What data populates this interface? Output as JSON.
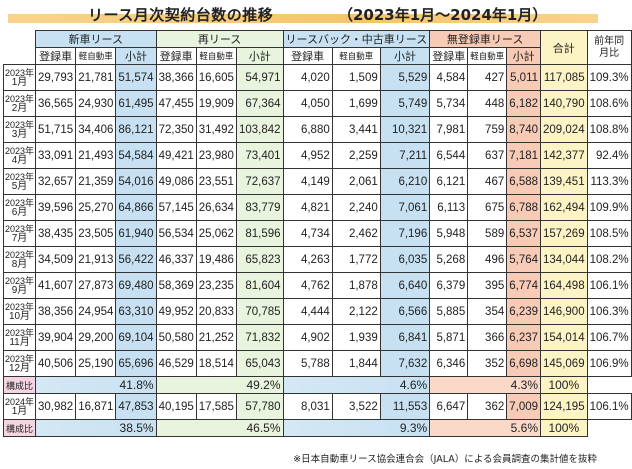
{
  "title": "リース月次契約台数の推移",
  "period": "（2023年1月〜2024年1月）",
  "headers": {
    "groups": [
      "新車リース",
      "再リース",
      "リースバック・中古車リース",
      "無登録車リース"
    ],
    "sub": [
      "登録車",
      "軽自動車",
      "小計"
    ],
    "sub_last": [
      "登録車",
      "軽自動車",
      "小計"
    ],
    "total": "合計",
    "yoy": "前年同月比"
  },
  "rows": [
    {
      "y": "2023年",
      "m": "1月",
      "v": [
        "29,793",
        "21,781",
        "51,574",
        "38,366",
        "16,605",
        "54,971",
        "4,020",
        "1,509",
        "5,529",
        "4,584",
        "427",
        "5,011",
        "117,085",
        "109.3%"
      ]
    },
    {
      "y": "2023年",
      "m": "2月",
      "v": [
        "36,565",
        "24,930",
        "61,495",
        "47,455",
        "19,909",
        "67,364",
        "4,050",
        "1,699",
        "5,749",
        "5,734",
        "448",
        "6,182",
        "140,790",
        "108.6%"
      ]
    },
    {
      "y": "2023年",
      "m": "3月",
      "v": [
        "51,715",
        "34,406",
        "86,121",
        "72,350",
        "31,492",
        "103,842",
        "6,880",
        "3,441",
        "10,321",
        "7,981",
        "759",
        "8,740",
        "209,024",
        "108.8%"
      ]
    },
    {
      "y": "2023年",
      "m": "4月",
      "v": [
        "33,091",
        "21,493",
        "54,584",
        "49,421",
        "23,980",
        "73,401",
        "4,952",
        "2,259",
        "7,211",
        "6,544",
        "637",
        "7,181",
        "142,377",
        "92.4%"
      ]
    },
    {
      "y": "2023年",
      "m": "5月",
      "v": [
        "32,657",
        "21,359",
        "54,016",
        "49,086",
        "23,551",
        "72,637",
        "4,149",
        "2,061",
        "6,210",
        "6,121",
        "467",
        "6,588",
        "139,451",
        "113.3%"
      ]
    },
    {
      "y": "2023年",
      "m": "6月",
      "v": [
        "39,596",
        "25,270",
        "64,866",
        "57,145",
        "26,634",
        "83,779",
        "4,821",
        "2,240",
        "7,061",
        "6,113",
        "675",
        "6,788",
        "162,494",
        "109.9%"
      ]
    },
    {
      "y": "2023年",
      "m": "7月",
      "v": [
        "38,435",
        "23,505",
        "61,940",
        "56,534",
        "25,062",
        "81,596",
        "4,734",
        "2,462",
        "7,196",
        "5,948",
        "589",
        "6,537",
        "157,269",
        "108.5%"
      ]
    },
    {
      "y": "2023年",
      "m": "8月",
      "v": [
        "34,509",
        "21,913",
        "56,422",
        "46,337",
        "19,486",
        "65,823",
        "4,263",
        "1,772",
        "6,035",
        "5,268",
        "496",
        "5,764",
        "134,044",
        "108.2%"
      ]
    },
    {
      "y": "2023年",
      "m": "9月",
      "v": [
        "41,607",
        "27,873",
        "69,480",
        "58,369",
        "23,235",
        "81,604",
        "4,762",
        "1,878",
        "6,640",
        "6,379",
        "395",
        "6,774",
        "164,498",
        "106.1%"
      ]
    },
    {
      "y": "2023年",
      "m": "10月",
      "v": [
        "38,356",
        "24,954",
        "63,310",
        "49,952",
        "20,833",
        "70,785",
        "4,444",
        "2,122",
        "6,566",
        "5,885",
        "354",
        "6,239",
        "146,900",
        "106.3%"
      ]
    },
    {
      "y": "2023年",
      "m": "11月",
      "v": [
        "39,904",
        "29,200",
        "69,104",
        "50,580",
        "21,252",
        "71,832",
        "4,902",
        "1,939",
        "6,841",
        "5,871",
        "366",
        "6,237",
        "154,014",
        "106.7%"
      ]
    },
    {
      "y": "2023年",
      "m": "12月",
      "v": [
        "40,506",
        "25,190",
        "65,696",
        "46,529",
        "18,514",
        "65,043",
        "5,788",
        "1,844",
        "7,632",
        "6,346",
        "352",
        "6,698",
        "145,069",
        "106.9%"
      ]
    }
  ],
  "ratio_2023": {
    "label": "構成比",
    "v": [
      "41.8%",
      "49.2%",
      "4.6%",
      "4.3%",
      "100%"
    ]
  },
  "row_2024": {
    "y": "2024年",
    "m": "1月",
    "v": [
      "30,982",
      "16,871",
      "47,853",
      "40,195",
      "17,585",
      "57,780",
      "8,031",
      "3,522",
      "11,553",
      "6,647",
      "362",
      "7,009",
      "124,195",
      "106.1%"
    ]
  },
  "ratio_2024": {
    "label": "構成比",
    "v": [
      "38.5%",
      "46.5%",
      "9.3%",
      "5.6%",
      "100%"
    ]
  },
  "note": "※日本自動車リース協会連合会（JALA）による会員調査の集計値を抜粋"
}
